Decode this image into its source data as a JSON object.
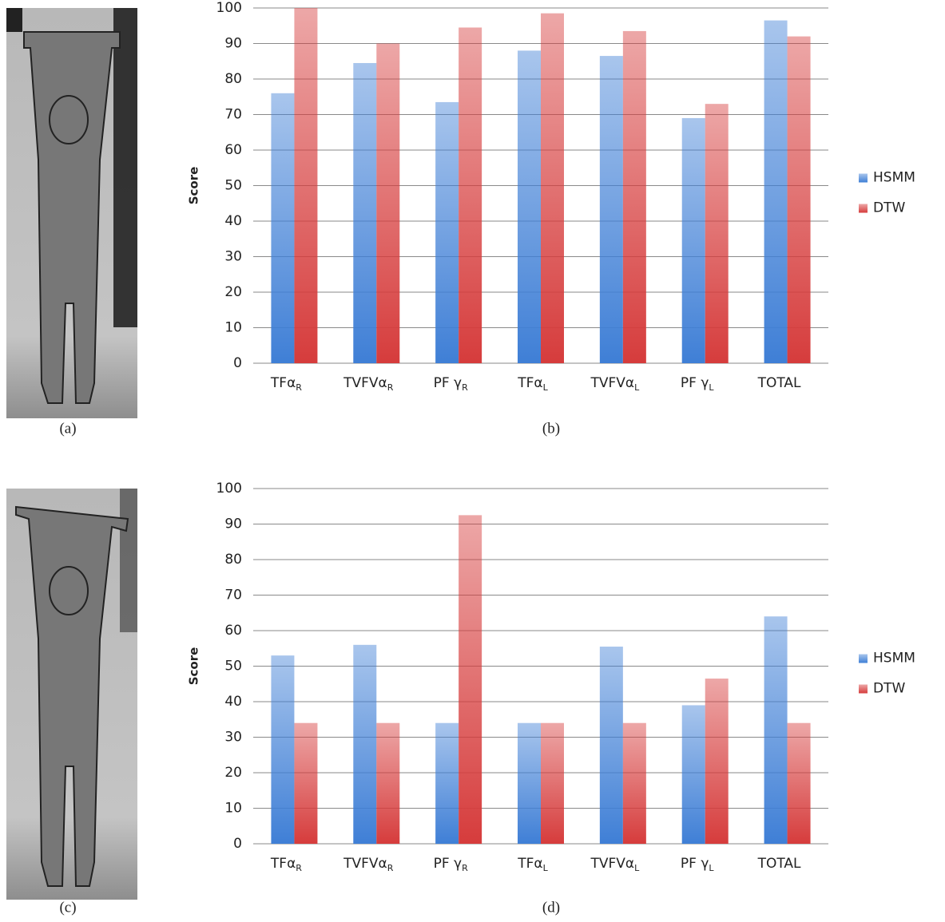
{
  "chart_data": [
    {
      "type": "bar",
      "y_label": "Score",
      "categories": [
        [
          "TFα",
          "R"
        ],
        [
          "TVFVα",
          "R"
        ],
        [
          "PF γ",
          "R"
        ],
        [
          "TFα",
          "L"
        ],
        [
          "TVFVα",
          "L"
        ],
        [
          "PF γ",
          "L"
        ],
        [
          "TOTAL"
        ]
      ],
      "series": [
        {
          "name": "HSMM",
          "color": "#3f7fd6",
          "values": [
            76,
            84.5,
            73.5,
            88,
            86.5,
            69,
            96.5
          ]
        },
        {
          "name": "DTW",
          "color": "#d63c3c",
          "values": [
            100,
            90,
            94.5,
            98.5,
            93.5,
            73,
            92
          ]
        }
      ],
      "ylim": [
        0,
        100
      ],
      "yticks": [
        0,
        10,
        20,
        30,
        40,
        50,
        60,
        70,
        80,
        90,
        100
      ],
      "grid": true,
      "legend": "right"
    },
    {
      "type": "bar",
      "y_label": "Score",
      "categories": [
        [
          "TFα",
          "R"
        ],
        [
          "TVFVα",
          "R"
        ],
        [
          "PF γ",
          "R"
        ],
        [
          "TFα",
          "L"
        ],
        [
          "TVFVα",
          "L"
        ],
        [
          "PF γ",
          "L"
        ],
        [
          "TOTAL"
        ]
      ],
      "series": [
        {
          "name": "HSMM",
          "color": "#3f7fd6",
          "values": [
            53,
            56,
            34,
            34,
            55.5,
            39,
            64
          ]
        },
        {
          "name": "DTW",
          "color": "#d63c3c",
          "values": [
            34,
            34,
            92.5,
            34,
            34,
            46.5,
            34
          ]
        }
      ],
      "ylim": [
        0,
        100
      ],
      "yticks": [
        0,
        10,
        20,
        30,
        40,
        50,
        60,
        70,
        80,
        90,
        100
      ],
      "grid": true,
      "legend": "right"
    }
  ],
  "captions": [
    "(a)",
    "(b)",
    "(c)",
    "(d)"
  ]
}
